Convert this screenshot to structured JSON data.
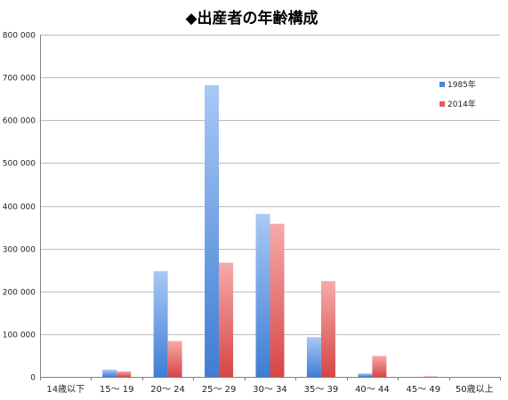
{
  "chart_data": {
    "type": "bar",
    "title": "◆出産者の年齢構成",
    "xlabel": "",
    "ylabel": "",
    "ylim": [
      0,
      800000
    ],
    "yticks": [
      0,
      100000,
      200000,
      300000,
      400000,
      500000,
      600000,
      700000,
      800000
    ],
    "ytick_labels": [
      "0",
      "100 000",
      "200 000",
      "300 000",
      "400 000",
      "500 000",
      "600 000",
      "700 000",
      "800 000"
    ],
    "grid": true,
    "legend_position": "top-right",
    "categories": [
      "14歳以下",
      "15～ 19",
      "20～ 24",
      "25～ 29",
      "30～ 34",
      "35～ 39",
      "40～ 44",
      "45～ 49",
      "50歳以上"
    ],
    "series": [
      {
        "name": "1985年",
        "color": "#4a86d8",
        "values": [
          0,
          17000,
          247000,
          682000,
          381000,
          93000,
          8000,
          0,
          0
        ]
      },
      {
        "name": "2014年",
        "color": "#e05c5c",
        "values": [
          0,
          13000,
          84000,
          267000,
          358000,
          224000,
          49000,
          1000,
          0
        ]
      }
    ]
  }
}
